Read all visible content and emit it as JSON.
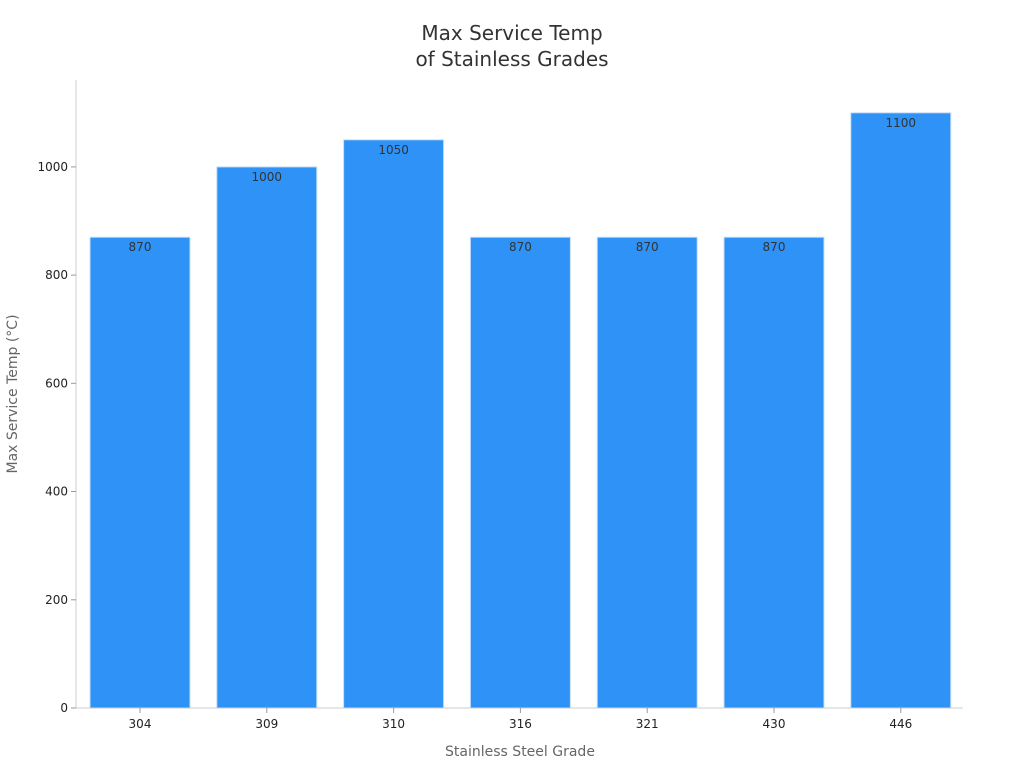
{
  "chart_data": {
    "type": "bar",
    "title": [
      "Max Service Temp",
      "of Stainless Grades"
    ],
    "xlabel": "Stainless Steel Grade",
    "ylabel": "Max Service Temp (°C)",
    "categories": [
      "304",
      "309",
      "310",
      "316",
      "321",
      "430",
      "446"
    ],
    "values": [
      870,
      1000,
      1050,
      870,
      870,
      870,
      1100
    ],
    "ylim": [
      0,
      1155
    ],
    "yticks": [
      0,
      200,
      400,
      600,
      800,
      1000
    ],
    "bar_color": "#2e92f7",
    "grid": false,
    "legend": "none"
  }
}
